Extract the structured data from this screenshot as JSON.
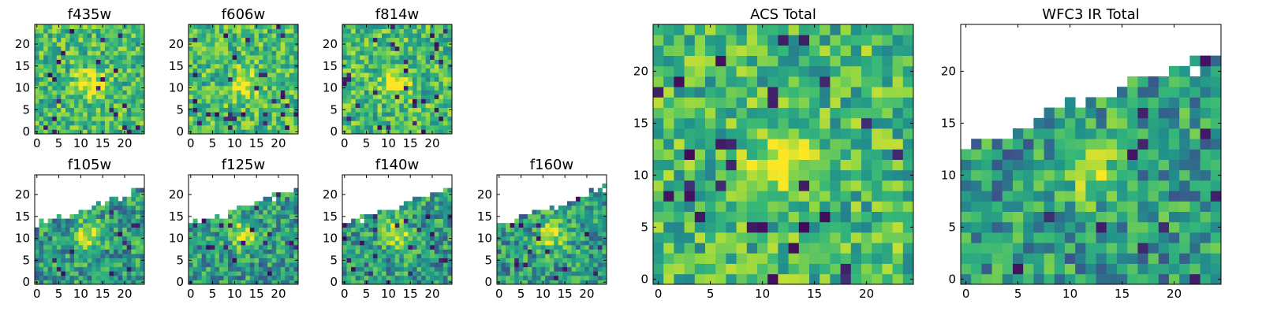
{
  "chart_data": [
    {
      "type": "heatmap",
      "title": "f435w",
      "xlim": [
        0,
        24
      ],
      "ylim": [
        0,
        24
      ],
      "xticks": [
        0,
        5,
        10,
        15,
        20
      ],
      "yticks": [
        0,
        5,
        10,
        15,
        20
      ],
      "colormap": "viridis",
      "coverage": "full"
    },
    {
      "type": "heatmap",
      "title": "f606w",
      "xlim": [
        0,
        24
      ],
      "ylim": [
        0,
        24
      ],
      "xticks": [
        0,
        5,
        10,
        15,
        20
      ],
      "yticks": [
        0,
        5,
        10,
        15,
        20
      ],
      "colormap": "viridis",
      "coverage": "full"
    },
    {
      "type": "heatmap",
      "title": "f814w",
      "xlim": [
        0,
        24
      ],
      "ylim": [
        0,
        24
      ],
      "xticks": [
        0,
        5,
        10,
        15,
        20
      ],
      "yticks": [
        0,
        5,
        10,
        15,
        20
      ],
      "colormap": "viridis",
      "coverage": "full"
    },
    {
      "type": "heatmap",
      "title": "f105w",
      "xlim": [
        0,
        24
      ],
      "ylim": [
        0,
        24
      ],
      "xticks": [
        0,
        5,
        10,
        15,
        20
      ],
      "yticks": [
        0,
        5,
        10,
        15,
        20
      ],
      "colormap": "viridis",
      "coverage": "partial"
    },
    {
      "type": "heatmap",
      "title": "f125w",
      "xlim": [
        0,
        24
      ],
      "ylim": [
        0,
        24
      ],
      "xticks": [
        0,
        5,
        10,
        15,
        20
      ],
      "yticks": [
        0,
        5,
        10,
        15,
        20
      ],
      "colormap": "viridis",
      "coverage": "partial"
    },
    {
      "type": "heatmap",
      "title": "f140w",
      "xlim": [
        0,
        24
      ],
      "ylim": [
        0,
        24
      ],
      "xticks": [
        0,
        5,
        10,
        15,
        20
      ],
      "yticks": [
        0,
        5,
        10,
        15,
        20
      ],
      "colormap": "viridis",
      "coverage": "partial"
    },
    {
      "type": "heatmap",
      "title": "f160w",
      "xlim": [
        0,
        24
      ],
      "ylim": [
        0,
        24
      ],
      "xticks": [
        0,
        5,
        10,
        15,
        20
      ],
      "yticks": [
        0,
        5,
        10,
        15,
        20
      ],
      "colormap": "viridis",
      "coverage": "partial"
    },
    {
      "type": "heatmap",
      "title": "ACS Total",
      "xlim": [
        0,
        24
      ],
      "ylim": [
        0,
        24
      ],
      "xticks": [
        0,
        5,
        10,
        15,
        20
      ],
      "yticks": [
        0,
        5,
        10,
        15,
        20
      ],
      "colormap": "viridis",
      "coverage": "full"
    },
    {
      "type": "heatmap",
      "title": "WFC3 IR Total",
      "xlim": [
        0,
        24
      ],
      "ylim": [
        0,
        24
      ],
      "xticks": [
        0,
        5,
        10,
        15,
        20
      ],
      "yticks": [
        0,
        5,
        10,
        15,
        20
      ],
      "colormap": "viridis",
      "coverage": "partial"
    }
  ],
  "colors": {
    "dark": "#440154",
    "blue": "#31688e",
    "teal": "#21908d",
    "green": "#35b779",
    "light": "#90d743",
    "yellow": "#fde725"
  }
}
